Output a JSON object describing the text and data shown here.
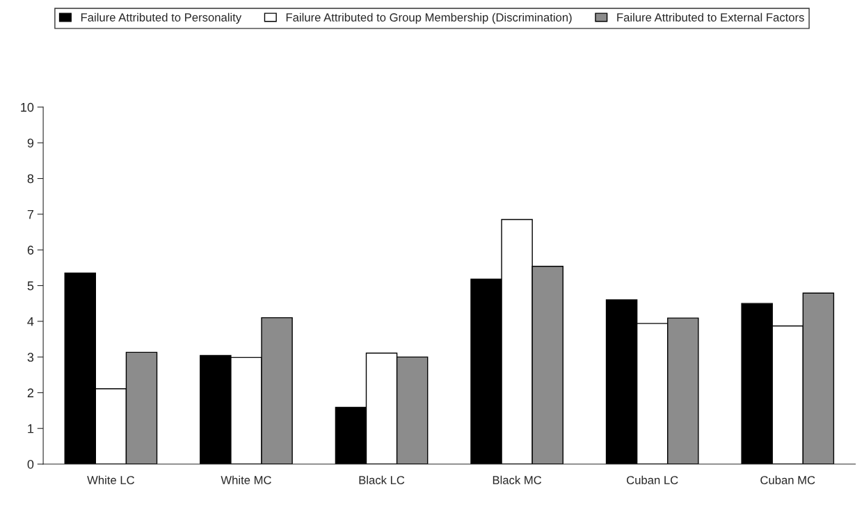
{
  "chart_data": {
    "type": "bar",
    "categories": [
      "White LC",
      "White MC",
      "Black LC",
      "Black MC",
      "Cuban LC",
      "Cuban MC"
    ],
    "series": [
      {
        "name": "Failure Attributed to Personality",
        "color": "#000000",
        "values": [
          5.35,
          3.04,
          1.59,
          5.18,
          4.6,
          4.5
        ]
      },
      {
        "name": "Failure Attributed to Group Membership (Discrimination)",
        "color": "#ffffff",
        "values": [
          2.11,
          2.99,
          3.11,
          6.85,
          3.94,
          3.87
        ]
      },
      {
        "name": "Failure Attributed to External Factors",
        "color": "#8c8c8c",
        "values": [
          3.13,
          4.1,
          3.0,
          5.54,
          4.09,
          4.79
        ]
      }
    ],
    "ylim": [
      0,
      10
    ],
    "yticks": [
      0,
      1,
      2,
      3,
      4,
      5,
      6,
      7,
      8,
      9,
      10
    ],
    "grid": false,
    "legend": "top"
  }
}
